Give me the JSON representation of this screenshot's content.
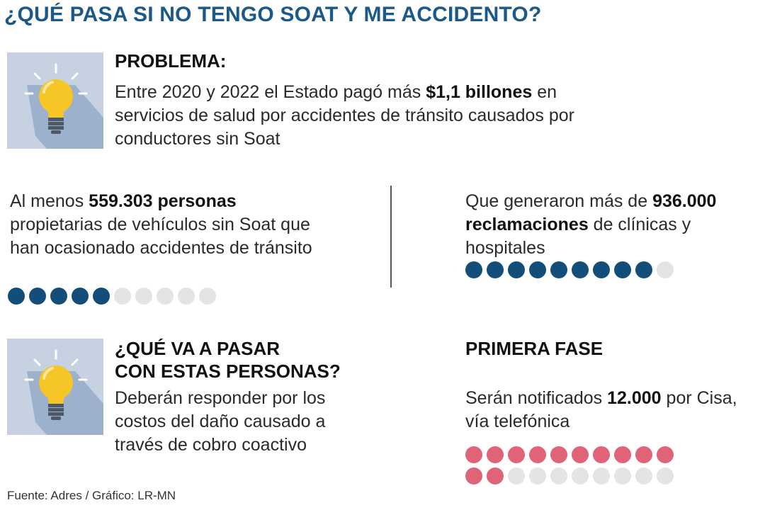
{
  "title": "¿QUÉ PASA SI NO TENGO SOAT Y ME ACCIDENTO?",
  "colors": {
    "title": "#1b5a86",
    "dot_filled_blue": "#134e7a",
    "dot_filled_pink": "#e06477",
    "dot_empty": "#e4e4e4",
    "icon_bg": "#c6d2e2",
    "bulb": "#f6c626"
  },
  "icons": [
    "lightbulb-icon",
    "lightbulb-icon"
  ],
  "problem": {
    "heading": "PROBLEMA:",
    "text_1": "Entre 2020 y 2022 el Estado pagó más ",
    "highlight": "$1,1 billones",
    "text_2": " en servicios de salud por accidentes de tránsito causados por conductores sin Soat"
  },
  "stat_people": {
    "text_1": "Al menos ",
    "highlight": "559.303 personas",
    "text_2": " propietarias de vehículos sin Soat que han ocasionado accidentes de tránsito",
    "dots_filled": 5,
    "dots_total": 10
  },
  "stat_claims": {
    "text_1": "Que generaron más de ",
    "highlight": "936.000 reclamaciones",
    "text_2": " de clínicas y hospitales",
    "dots_filled": 9,
    "dots_total": 10
  },
  "what_happens": {
    "heading_line1": "¿QUÉ VA A PASAR",
    "heading_line2": "CON ESTAS PERSONAS?",
    "text": "Deberán responder por los costos del daño causado a través de cobro coactivo"
  },
  "first_phase": {
    "heading": "PRIMERA FASE",
    "text_1": "Serán notificados ",
    "highlight": "12.000",
    "text_2": " por Cisa, vía telefónica",
    "dots_filled": 12,
    "dots_total": 20
  },
  "source": "Fuente: Adres / Gráfico: LR-MN"
}
